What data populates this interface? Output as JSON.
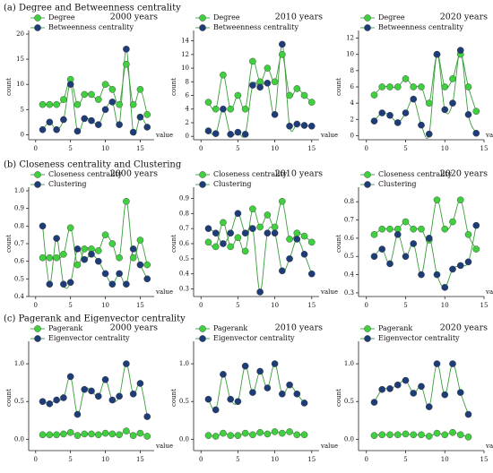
{
  "section_titles": [
    "(a) Degree and Betweenness centrality",
    "(b) Closeness centrality and Clustering",
    "(c) Pagerank and Eigenvector centrality"
  ],
  "chart_data": [
    {
      "type": "line",
      "title": "2000 years",
      "xlabel": "value",
      "ylabel": "count",
      "line_color": "#3c9e3c",
      "x": [
        1,
        2,
        3,
        4,
        5,
        6,
        7,
        8,
        9,
        10,
        11,
        12,
        13,
        14,
        15,
        16
      ],
      "xlim": [
        -1,
        17
      ],
      "xticks": [
        0,
        5,
        10,
        15
      ],
      "ylim": [
        -1,
        20
      ],
      "yticks": [
        0,
        5,
        10,
        15,
        20
      ],
      "series": [
        {
          "name": "Degree",
          "color": "#3fcf3f",
          "values": [
            6,
            6,
            6,
            7,
            11,
            6,
            8,
            8,
            7,
            10,
            9,
            6,
            14,
            6,
            9,
            4
          ]
        },
        {
          "name": "Betweenness centrality",
          "color": "#1d3c78",
          "values": [
            1,
            2.5,
            1,
            3,
            10,
            0.7,
            3.2,
            2.8,
            2,
            5,
            6.5,
            2,
            17,
            0.5,
            3.5,
            1.5
          ]
        }
      ]
    },
    {
      "type": "line",
      "title": "2010 years",
      "xlabel": "value",
      "ylabel": "count",
      "line_color": "#3c9e3c",
      "x": [
        1,
        2,
        3,
        4,
        5,
        6,
        7,
        8,
        9,
        10,
        11,
        12,
        13,
        14,
        15
      ],
      "xlim": [
        -1,
        16
      ],
      "xticks": [
        0,
        5,
        10,
        15
      ],
      "ylim": [
        -0.5,
        15
      ],
      "yticks": [
        0,
        2,
        4,
        6,
        8,
        10,
        12,
        14
      ],
      "series": [
        {
          "name": "Degree",
          "color": "#3fcf3f",
          "values": [
            5,
            4,
            9,
            4,
            6,
            4,
            11,
            8,
            10,
            8,
            12,
            6,
            7,
            6,
            5
          ]
        },
        {
          "name": "Betweenness centrality",
          "color": "#1d3c78",
          "values": [
            0.8,
            0.4,
            4,
            0.3,
            0.6,
            0.3,
            7.5,
            7.2,
            7.8,
            3.2,
            13.5,
            1.5,
            1.8,
            1.6,
            1.5
          ]
        }
      ]
    },
    {
      "type": "line",
      "title": "2020 years",
      "xlabel": "value",
      "ylabel": "count",
      "line_color": "#3c9e3c",
      "x": [
        1,
        2,
        3,
        4,
        5,
        6,
        7,
        8,
        9,
        10,
        11,
        12,
        13,
        14
      ],
      "xlim": [
        -1,
        15
      ],
      "xticks": [
        0,
        5,
        10,
        15
      ],
      "ylim": [
        -0.5,
        12.5
      ],
      "yticks": [
        0,
        2,
        4,
        6,
        8,
        10,
        12
      ],
      "series": [
        {
          "name": "Degree",
          "color": "#3fcf3f",
          "values": [
            5,
            6,
            6,
            6,
            7,
            6,
            6,
            4,
            10,
            6,
            7,
            10,
            6,
            3
          ]
        },
        {
          "name": "Betweenness centrality",
          "color": "#1d3c78",
          "values": [
            1.8,
            2.8,
            2.5,
            1.6,
            2.8,
            4.5,
            1.3,
            0.2,
            10,
            3.2,
            4,
            10.5,
            2.6,
            0.3
          ]
        }
      ]
    },
    {
      "type": "line",
      "title": "2000 years",
      "xlabel": "value",
      "ylabel": "count",
      "line_color": "#3c9e3c",
      "x": [
        1,
        2,
        3,
        4,
        5,
        6,
        7,
        8,
        9,
        10,
        11,
        12,
        13,
        14,
        15,
        16
      ],
      "xlim": [
        -1,
        17
      ],
      "xticks": [
        0,
        5,
        10,
        15
      ],
      "ylim": [
        0.4,
        1.0
      ],
      "yticks": [
        0.4,
        0.5,
        0.6,
        0.7,
        0.8,
        0.9,
        {
          "value": 1,
          "label": "1.0"
        }
      ],
      "series": [
        {
          "name": "Closeness centrality",
          "color": "#3fcf3f",
          "values": [
            0.62,
            0.62,
            0.62,
            0.64,
            0.79,
            0.58,
            0.67,
            0.67,
            0.66,
            0.75,
            0.7,
            0.62,
            0.94,
            0.62,
            0.72,
            0.58
          ]
        },
        {
          "name": "Clustering",
          "color": "#1d3c78",
          "values": [
            0.8,
            0.47,
            0.73,
            0.47,
            0.48,
            0.67,
            0.61,
            0.64,
            0.6,
            0.53,
            0.47,
            0.53,
            0.47,
            0.67,
            0.58,
            0.5
          ]
        }
      ]
    },
    {
      "type": "line",
      "title": "2010 years",
      "xlabel": "value",
      "ylabel": "count",
      "line_color": "#3c9e3c",
      "x": [
        1,
        2,
        3,
        4,
        5,
        6,
        7,
        8,
        9,
        10,
        11,
        12,
        13,
        14,
        15
      ],
      "xlim": [
        -1,
        16
      ],
      "xticks": [
        0,
        5,
        10,
        15
      ],
      "ylim": [
        0.25,
        0.95
      ],
      "yticks": [
        0.3,
        0.4,
        0.5,
        0.6,
        0.7,
        0.8,
        0.9
      ],
      "series": [
        {
          "name": "Closeness centrality",
          "color": "#3fcf3f",
          "values": [
            0.61,
            0.58,
            0.74,
            0.58,
            0.64,
            0.55,
            0.83,
            0.71,
            0.79,
            0.71,
            0.88,
            0.63,
            0.67,
            0.65,
            0.61
          ]
        },
        {
          "name": "Clustering",
          "color": "#1d3c78",
          "values": [
            0.7,
            0.67,
            0.6,
            0.67,
            0.8,
            0.67,
            0.7,
            0.28,
            0.67,
            0.67,
            0.42,
            0.5,
            0.63,
            0.53,
            0.4
          ]
        }
      ]
    },
    {
      "type": "line",
      "title": "2020 years",
      "xlabel": "value",
      "ylabel": "count",
      "line_color": "#3c9e3c",
      "x": [
        1,
        2,
        3,
        4,
        5,
        6,
        7,
        8,
        9,
        10,
        11,
        12,
        13,
        14
      ],
      "xlim": [
        -1,
        15
      ],
      "xticks": [
        0,
        5,
        10,
        15
      ],
      "ylim": [
        0.28,
        0.86
      ],
      "yticks": [
        0.3,
        0.4,
        0.5,
        0.6,
        0.7,
        0.8
      ],
      "series": [
        {
          "name": "Closeness centrality",
          "color": "#3fcf3f",
          "values": [
            0.62,
            0.65,
            0.65,
            0.65,
            0.69,
            0.65,
            0.65,
            0.59,
            0.81,
            0.65,
            0.69,
            0.81,
            0.62,
            0.54
          ]
        },
        {
          "name": "Clustering",
          "color": "#1d3c78",
          "values": [
            0.5,
            0.54,
            0.46,
            0.62,
            0.5,
            0.57,
            0.4,
            0.6,
            0.4,
            0.33,
            0.43,
            0.45,
            0.47,
            0.67
          ]
        }
      ]
    },
    {
      "type": "line",
      "title": "2000 years",
      "xlabel": "value",
      "ylabel": "count",
      "line_color": "#3c9e3c",
      "x": [
        1,
        2,
        3,
        4,
        5,
        6,
        7,
        8,
        9,
        10,
        11,
        12,
        13,
        14,
        15,
        16
      ],
      "xlim": [
        -1,
        17
      ],
      "xticks": [
        0,
        5,
        10,
        15
      ],
      "ylim": [
        -0.15,
        1.25
      ],
      "yticks": [
        {
          "value": 0,
          "label": "0.0"
        },
        0.5,
        {
          "value": 1,
          "label": "1.0"
        }
      ],
      "series": [
        {
          "name": "Pagerank",
          "color": "#3fcf3f",
          "values": [
            0.06,
            0.06,
            0.06,
            0.07,
            0.09,
            0.05,
            0.07,
            0.07,
            0.06,
            0.08,
            0.07,
            0.06,
            0.11,
            0.05,
            0.08,
            0.04
          ]
        },
        {
          "name": "Eigenvector centrality",
          "color": "#1d3c78",
          "values": [
            0.5,
            0.47,
            0.52,
            0.55,
            0.83,
            0.33,
            0.66,
            0.64,
            0.57,
            0.79,
            0.52,
            0.57,
            1.0,
            0.6,
            0.74,
            0.3
          ]
        }
      ]
    },
    {
      "type": "line",
      "title": "2010 years",
      "xlabel": "value",
      "ylabel": "count",
      "line_color": "#3c9e3c",
      "x": [
        1,
        2,
        3,
        4,
        5,
        6,
        7,
        8,
        9,
        10,
        11,
        12,
        13,
        14
      ],
      "xlim": [
        -1,
        16
      ],
      "xticks": [
        0,
        5,
        10,
        15
      ],
      "ylim": [
        -0.15,
        1.25
      ],
      "yticks": [
        {
          "value": 0,
          "label": "0.0"
        },
        0.5,
        {
          "value": 1,
          "label": "1.0"
        }
      ],
      "series": [
        {
          "name": "Pagerank",
          "color": "#3fcf3f",
          "values": [
            0.05,
            0.04,
            0.08,
            0.05,
            0.05,
            0.08,
            0.06,
            0.09,
            0.07,
            0.1,
            0.08,
            0.1,
            0.06,
            0.06
          ]
        },
        {
          "name": "Eigenvector centrality",
          "color": "#1d3c78",
          "values": [
            0.53,
            0.39,
            0.86,
            0.53,
            0.5,
            0.97,
            0.62,
            0.9,
            0.68,
            1.0,
            0.6,
            0.72,
            0.6,
            0.48
          ]
        }
      ]
    },
    {
      "type": "line",
      "title": "2020 years",
      "xlabel": "value",
      "ylabel": "count",
      "line_color": "#3c9e3c",
      "x": [
        1,
        2,
        3,
        4,
        5,
        6,
        7,
        8,
        9,
        10,
        11,
        12,
        13
      ],
      "xlim": [
        -1,
        15
      ],
      "xticks": [
        0,
        5,
        10,
        15
      ],
      "ylim": [
        -0.15,
        1.25
      ],
      "yticks": [
        {
          "value": 0,
          "label": "0.0"
        },
        0.5,
        {
          "value": 1,
          "label": "1.0"
        }
      ],
      "series": [
        {
          "name": "Pagerank",
          "color": "#3fcf3f",
          "values": [
            0.05,
            0.06,
            0.06,
            0.06,
            0.07,
            0.06,
            0.06,
            0.04,
            0.08,
            0.06,
            0.09,
            0.06,
            0.03
          ]
        },
        {
          "name": "Eigenvector centrality",
          "color": "#1d3c78",
          "values": [
            0.49,
            0.66,
            0.67,
            0.72,
            0.78,
            0.61,
            0.7,
            0.43,
            1.0,
            0.59,
            1.0,
            0.62,
            0.33
          ]
        }
      ]
    }
  ]
}
